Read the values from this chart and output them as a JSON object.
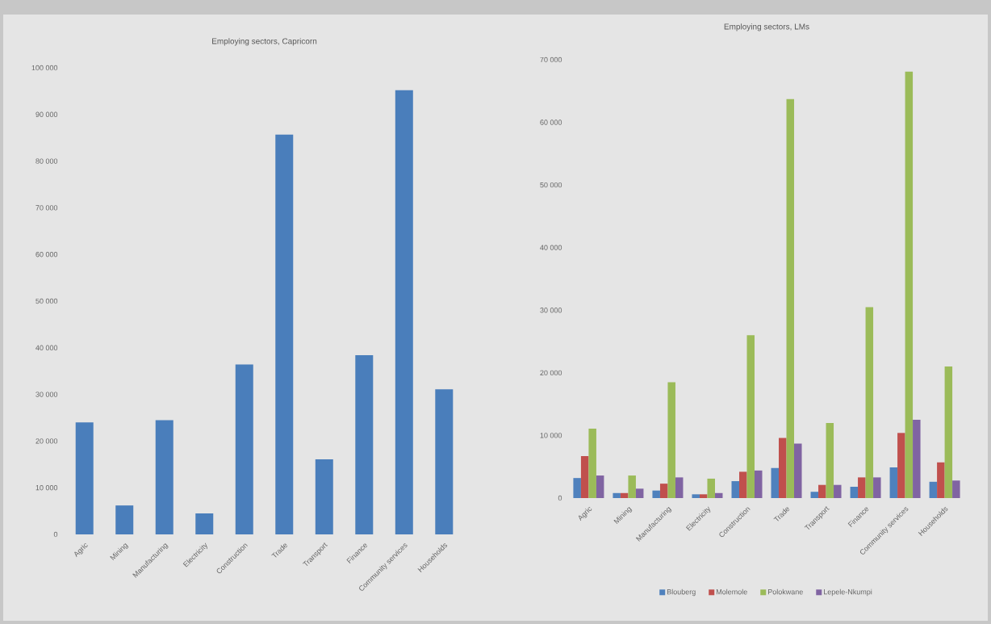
{
  "chart_data": [
    {
      "type": "bar",
      "title": "Employing sectors, Capricorn",
      "categories": [
        "Agric",
        "Mining",
        "Manufacturing",
        "Electricity",
        "Construction",
        "Trade",
        "Transport",
        "Finance",
        "Community services",
        "Households"
      ],
      "values": [
        24000,
        6200,
        24500,
        4500,
        36400,
        85700,
        16100,
        38400,
        95200,
        31100
      ],
      "color": "#4a7ebb",
      "ylim": [
        0,
        100000
      ],
      "yticks": [
        0,
        {
          "value": 10000,
          "label": "10 000"
        },
        {
          "value": 20000,
          "label": "20 000"
        },
        {
          "value": 30000,
          "label": "30 000"
        },
        {
          "value": 40000,
          "label": "40 000"
        },
        {
          "value": 50000,
          "label": "50 000"
        },
        {
          "value": 60000,
          "label": "60 000"
        },
        {
          "value": 70000,
          "label": "70 000"
        },
        {
          "value": 80000,
          "label": "80 000"
        },
        {
          "value": 90000,
          "label": "90 000"
        },
        {
          "value": 100000,
          "label": "100 000"
        }
      ],
      "grid": false,
      "legend": false
    },
    {
      "type": "bar",
      "title": "Employing sectors, LMs",
      "categories": [
        "Agric",
        "Mining",
        "Manufacturing",
        "Electricity",
        "Construction",
        "Trade",
        "Transport",
        "Finance",
        "Community services",
        "Households"
      ],
      "series": [
        {
          "name": "Blouberg",
          "color": "#4f81bd",
          "values": [
            3200,
            800,
            1200,
            600,
            2700,
            4800,
            1000,
            1800,
            4900,
            2600
          ]
        },
        {
          "name": "Molemole",
          "color": "#c0504d",
          "values": [
            6700,
            800,
            2300,
            600,
            4200,
            9600,
            2100,
            3300,
            10400,
            5700
          ]
        },
        {
          "name": "Polokwane",
          "color": "#9bbb59",
          "values": [
            11100,
            3600,
            18500,
            3100,
            26000,
            63700,
            12000,
            30500,
            68100,
            21000
          ]
        },
        {
          "name": "Lepele-Nkumpi",
          "color": "#8064a2",
          "values": [
            3600,
            1500,
            3300,
            800,
            4400,
            8700,
            2100,
            3300,
            12500,
            2800
          ]
        }
      ],
      "ylim": [
        0,
        70000
      ],
      "yticks": [
        0,
        {
          "value": 10000,
          "label": "10 000"
        },
        {
          "value": 20000,
          "label": "20 000"
        },
        {
          "value": 30000,
          "label": "30 000"
        },
        {
          "value": 40000,
          "label": "40 000"
        },
        {
          "value": 50000,
          "label": "50 000"
        },
        {
          "value": 60000,
          "label": "60 000"
        },
        {
          "value": 70000,
          "label": "70 000"
        }
      ],
      "grid": false,
      "legend": "bottom"
    }
  ]
}
